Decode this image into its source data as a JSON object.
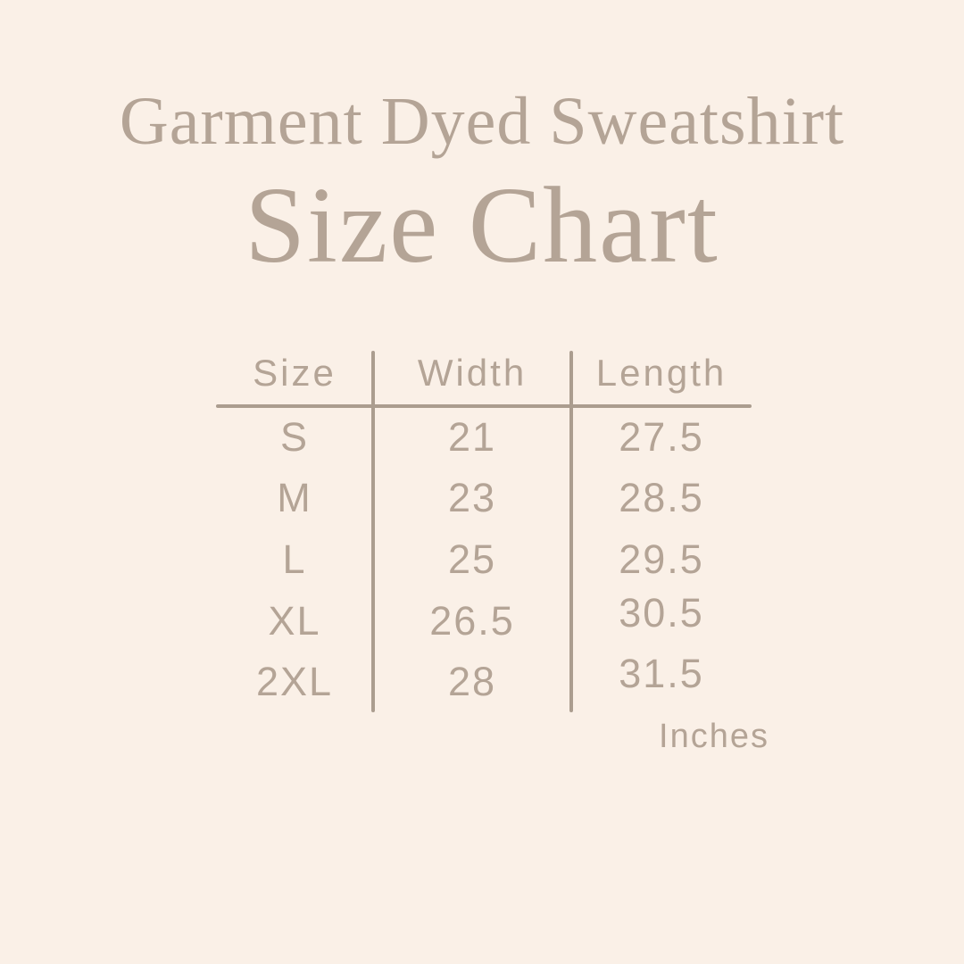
{
  "colors": {
    "background": "#faf0e7",
    "text": "#b4a496",
    "rule": "#ab9d8f"
  },
  "header": {
    "subtitle": "Garment Dyed Sweatshirt",
    "title": "Size Chart"
  },
  "chart_data": {
    "type": "table",
    "title": "Garment Dyed Sweatshirt Size Chart",
    "columns": [
      "Size",
      "Width",
      "Length"
    ],
    "rows": [
      {
        "size": "S",
        "width": "21",
        "length": "27.5"
      },
      {
        "size": "M",
        "width": "23",
        "length": "28.5"
      },
      {
        "size": "L",
        "width": "25",
        "length": "29.5"
      },
      {
        "size": "XL",
        "width": "26.5",
        "length": "30.5"
      },
      {
        "size": "2XL",
        "width": "28",
        "length": "31.5"
      }
    ],
    "units": "Inches",
    "layout": {
      "grid": "off",
      "column_dividers": 2,
      "header_underline": true
    }
  }
}
